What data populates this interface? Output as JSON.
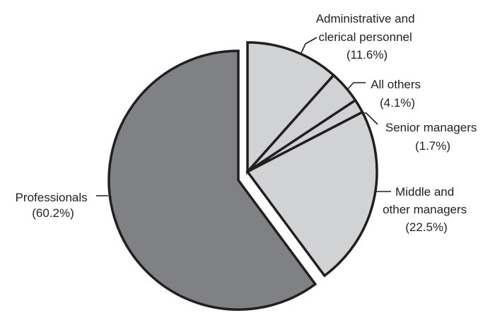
{
  "chart_data": {
    "type": "pie",
    "title": "",
    "exploded": [
      "Administrative and clerical personnel",
      "All others",
      "Senior managers",
      "Middle and other managers"
    ],
    "slices": [
      {
        "label": "Professionals",
        "value": 60.2,
        "display": "(60.2%)",
        "color": "#808184"
      },
      {
        "label": "Middle and other managers",
        "value": 22.5,
        "display": "(22.5%)",
        "color": "#d1d2d4"
      },
      {
        "label": "Senior managers",
        "value": 1.7,
        "display": "(1.7%)",
        "color": "#d1d2d4"
      },
      {
        "label": "All others",
        "value": 4.1,
        "display": "(4.1%)",
        "color": "#d1d2d4"
      },
      {
        "label": "Administrative and clerical personnel",
        "value": 11.6,
        "display": "(11.6%)",
        "color": "#d1d2d4"
      }
    ],
    "legend": "none (callout labels)"
  },
  "labels": {
    "professionals": {
      "line1": "Professionals",
      "line2": "(60.2%)"
    },
    "middle": {
      "line1": "Middle and",
      "line2": "other managers",
      "line3": "(22.5%)"
    },
    "senior": {
      "line1": "Senior managers",
      "line2": "(1.7%)"
    },
    "others": {
      "line1": "All others",
      "line2": "(4.1%)"
    },
    "admin": {
      "line1": "Administrative and",
      "line2": "clerical personnel",
      "line3": "(11.6%)"
    }
  },
  "colors": {
    "dark_slice": "#808184",
    "light_slice": "#d1d2d4",
    "outline": "#231f20"
  }
}
